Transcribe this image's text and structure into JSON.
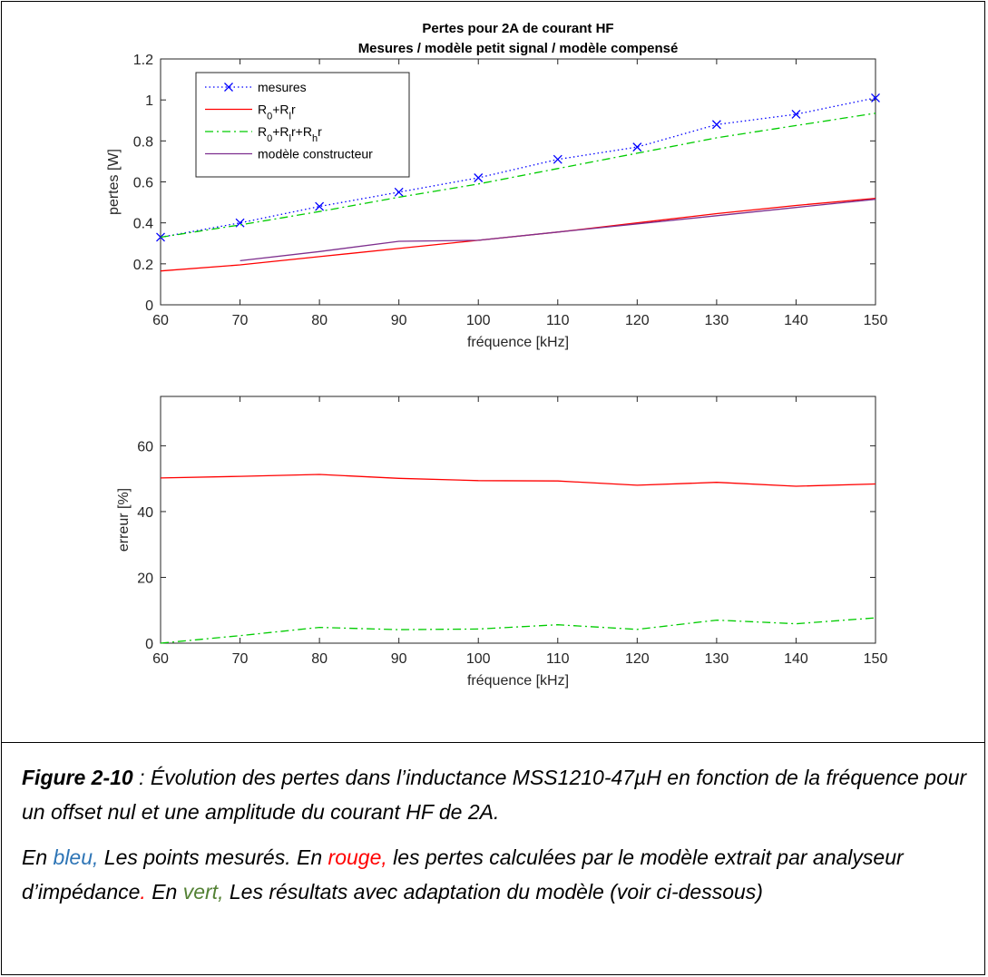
{
  "chart_data": [
    {
      "type": "line",
      "title": "Pertes pour 2A de courant HF",
      "subtitle": "Mesures / modèle petit signal / modèle compensé",
      "xlabel": "fréquence [kHz]",
      "ylabel": "pertes [W]",
      "xlim": [
        60,
        150
      ],
      "ylim": [
        0,
        1.2
      ],
      "xticks": [
        "60",
        "70",
        "80",
        "90",
        "100",
        "110",
        "120",
        "130",
        "140",
        "150"
      ],
      "yticks": [
        "0",
        "0.2",
        "0.4",
        "0.6",
        "0.8",
        "1",
        "1.2"
      ],
      "legend_position": "top-left",
      "grid": false,
      "series": [
        {
          "name": "mesures",
          "legend_html": "mesures",
          "color": "#0000ff",
          "style": "dotted",
          "marker": "x",
          "x": [
            60,
            70,
            80,
            90,
            100,
            110,
            120,
            130,
            140,
            150
          ],
          "y": [
            0.33,
            0.4,
            0.48,
            0.55,
            0.62,
            0.71,
            0.77,
            0.88,
            0.93,
            1.01
          ]
        },
        {
          "name": "R0+Rlr",
          "legend_html": "R<tspan baseline-shift=\"sub\" font-size=\"11\">0</tspan>+R<tspan baseline-shift=\"sub\" font-size=\"11\">l</tspan>r",
          "color": "#ff0000",
          "style": "solid",
          "marker": "",
          "x": [
            60,
            70,
            80,
            90,
            100,
            110,
            120,
            130,
            140,
            150
          ],
          "y": [
            0.165,
            0.195,
            0.235,
            0.275,
            0.315,
            0.355,
            0.4,
            0.445,
            0.485,
            0.52
          ]
        },
        {
          "name": "R0+Rlr+Rhr",
          "legend_html": "R<tspan baseline-shift=\"sub\" font-size=\"11\">0</tspan>+R<tspan baseline-shift=\"sub\" font-size=\"11\">l</tspan>r+R<tspan baseline-shift=\"sub\" font-size=\"11\">h</tspan>r",
          "color": "#00cc00",
          "style": "dashdot",
          "marker": "",
          "x": [
            60,
            70,
            80,
            90,
            100,
            110,
            120,
            130,
            140,
            150
          ],
          "y": [
            0.33,
            0.39,
            0.455,
            0.525,
            0.59,
            0.665,
            0.74,
            0.815,
            0.875,
            0.935
          ]
        },
        {
          "name": "modèle constructeur",
          "legend_html": "modèle constructeur",
          "color": "#7e2f8e",
          "style": "solid",
          "marker": "",
          "x": [
            70,
            80,
            90,
            100,
            110,
            120,
            130,
            140,
            150
          ],
          "y": [
            0.215,
            0.26,
            0.31,
            0.315,
            0.355,
            0.395,
            0.435,
            0.475,
            0.515
          ]
        }
      ]
    },
    {
      "type": "line",
      "title": "",
      "xlabel": "fréquence [kHz]",
      "ylabel": "erreur [%]",
      "xlim": [
        60,
        150
      ],
      "ylim": [
        0,
        75
      ],
      "xticks": [
        "60",
        "70",
        "80",
        "90",
        "100",
        "110",
        "120",
        "130",
        "140",
        "150"
      ],
      "yticks": [
        "0",
        "20",
        "40",
        "60"
      ],
      "grid": false,
      "series": [
        {
          "color": "#ff0000",
          "style": "solid",
          "x": [
            60,
            70,
            80,
            90,
            100,
            110,
            120,
            130,
            140,
            150
          ],
          "y": [
            50.2,
            50.7,
            51.3,
            50.1,
            49.4,
            49.3,
            48.0,
            48.9,
            47.7,
            48.4
          ]
        },
        {
          "color": "#00cc00",
          "style": "dashdot",
          "x": [
            60,
            70,
            80,
            90,
            100,
            110,
            120,
            130,
            140,
            150
          ],
          "y": [
            0.0,
            2.3,
            4.8,
            4.1,
            4.3,
            5.6,
            4.2,
            7.0,
            5.9,
            7.7
          ]
        }
      ]
    }
  ],
  "caption": {
    "figure_label": "Figure 2-10",
    "line1_rest": " : Évolution des pertes dans l’inductance MSS1210-47µH en fonction de la fréquence pour un offset nul et une amplitude du courant HF de 2A.",
    "p2_part1": "En ",
    "p2_blue": "bleu,",
    "p2_part2": " Les points mesurés. En ",
    "p2_red": "rouge,",
    "p2_part3": " les pertes calculées par le modèle extrait par analyseur d’impédance",
    "p2_red_dot": ".",
    "p2_part4": " En ",
    "p2_green": "vert,",
    "p2_part5": " Les résultats avec adaptation du modèle (voir ci-dessous)"
  }
}
